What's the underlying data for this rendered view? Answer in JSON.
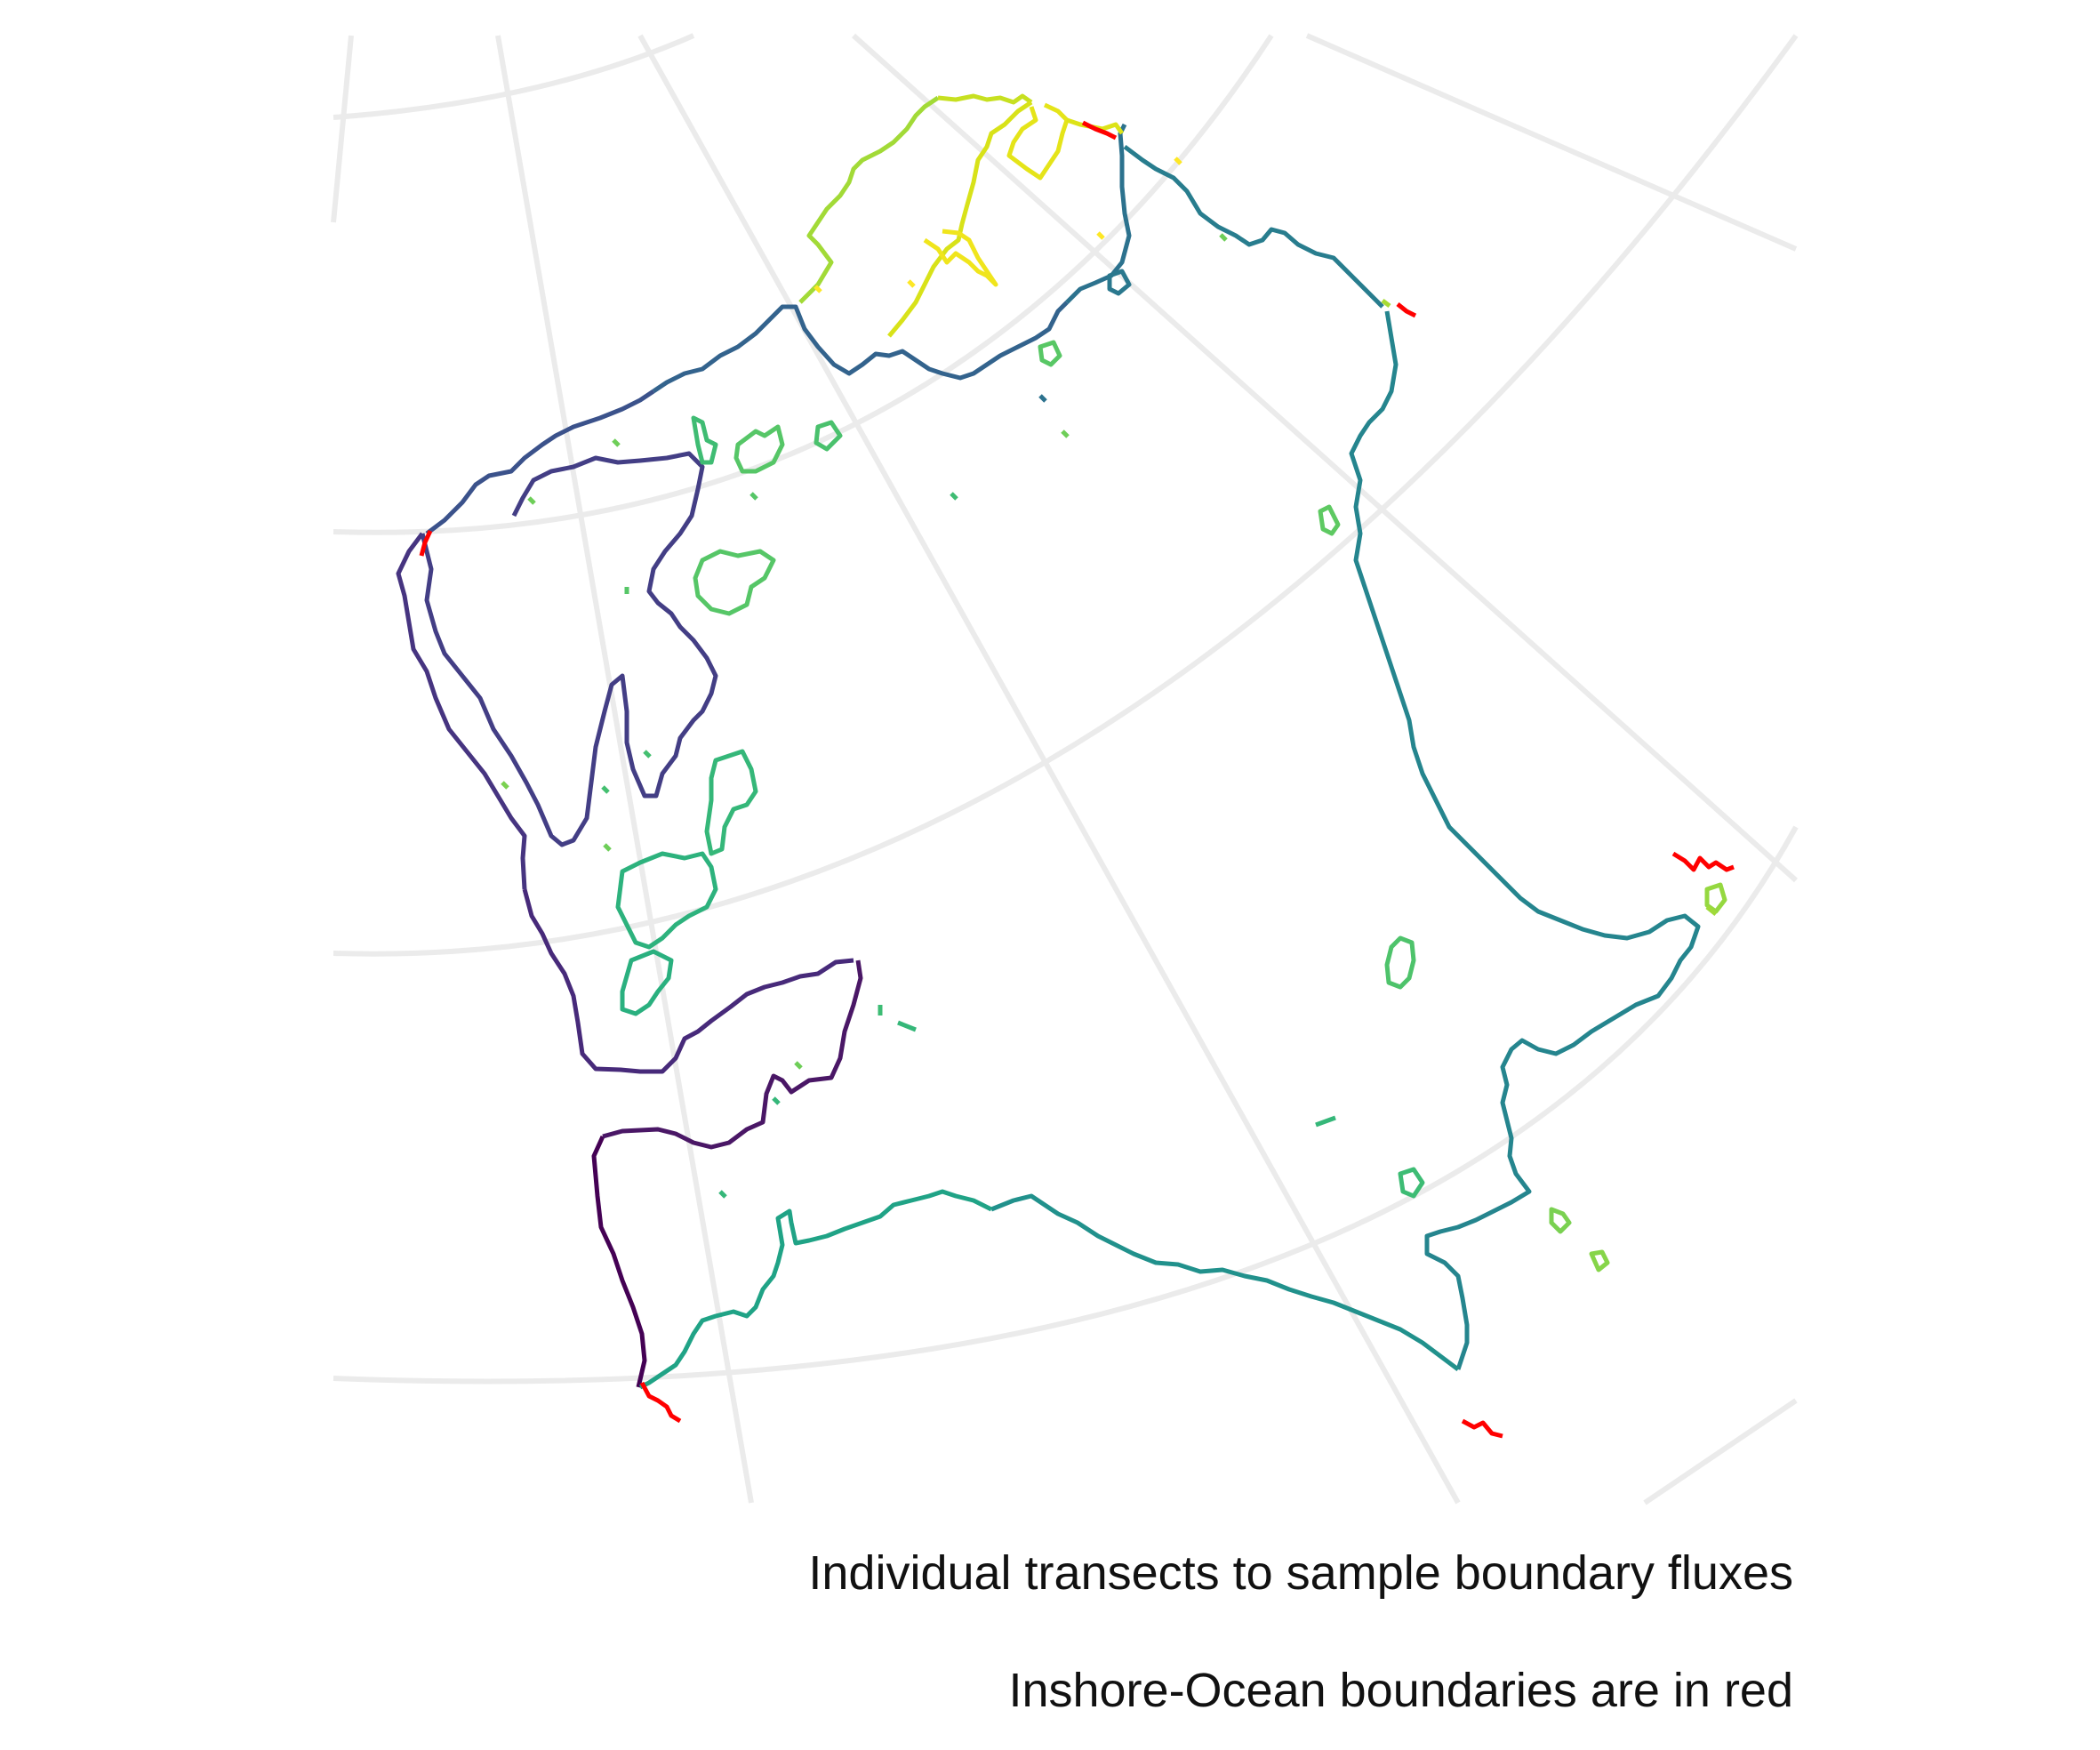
{
  "caption": {
    "line1": "Individual transects to sample boundary fluxes",
    "line2": "Inshore-Ocean boundaries are in red"
  },
  "colors": {
    "graticule": "#ebebeb",
    "ocean_boundary": "#ff0000",
    "palette": [
      "#440154",
      "#482878",
      "#3e4989",
      "#31688e",
      "#26828e",
      "#1f9e89",
      "#35b779",
      "#6ece58",
      "#b5de2b",
      "#fde725"
    ]
  }
}
